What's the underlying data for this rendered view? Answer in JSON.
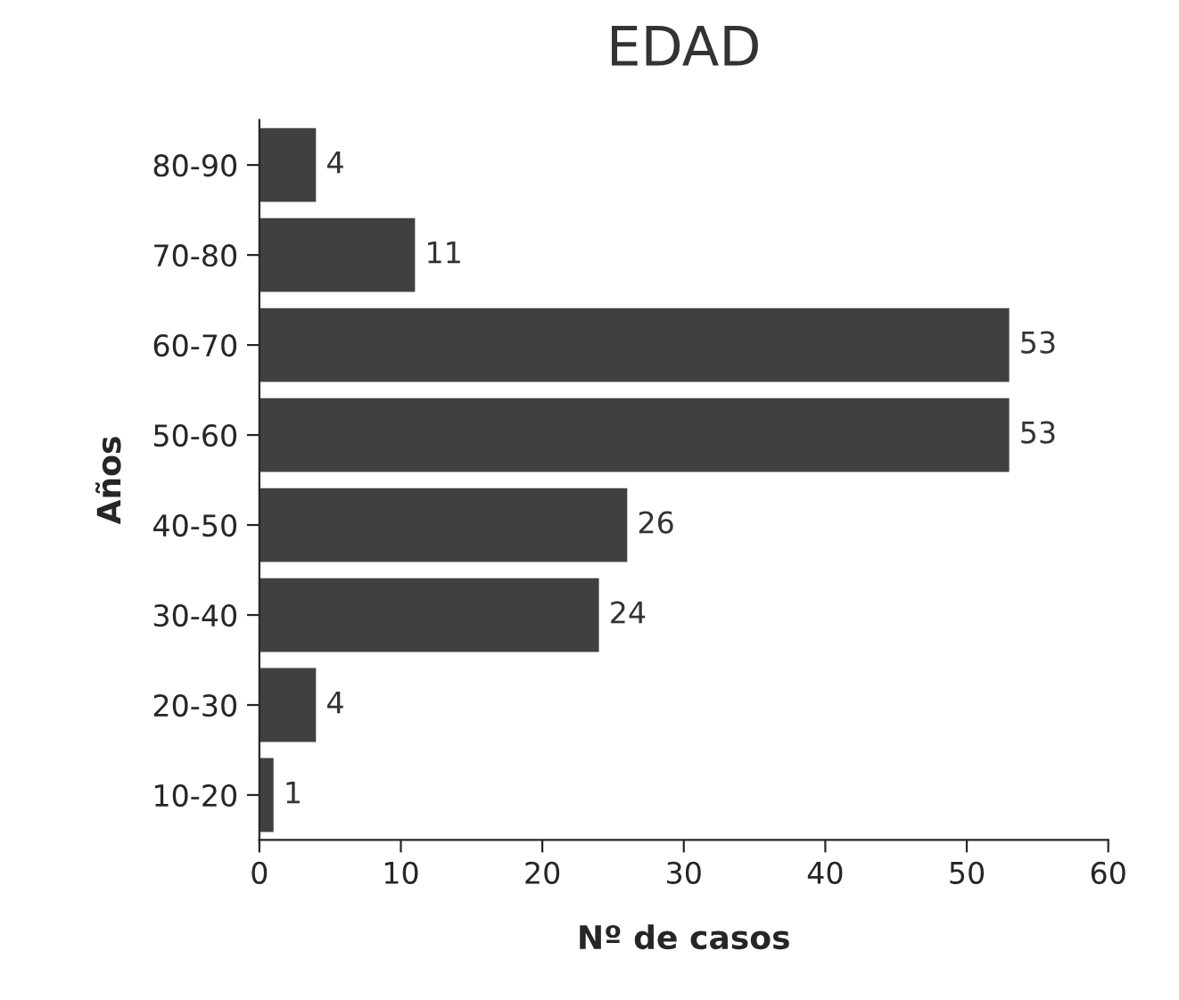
{
  "chart_data": {
    "type": "bar",
    "orientation": "horizontal",
    "title": "EDAD",
    "xlabel": "Nº de casos",
    "ylabel": "Años",
    "categories": [
      "80-90",
      "70-80",
      "60-70",
      "50-60",
      "40-50",
      "30-40",
      "20-30",
      "10-20"
    ],
    "values": [
      4,
      11,
      53,
      53,
      26,
      24,
      4,
      1
    ],
    "color": "#404040",
    "xlim": [
      0,
      60
    ],
    "xticks": [
      0,
      10,
      20,
      30,
      40,
      50,
      60
    ],
    "data_labels": true,
    "grid": false,
    "legend": false
  }
}
